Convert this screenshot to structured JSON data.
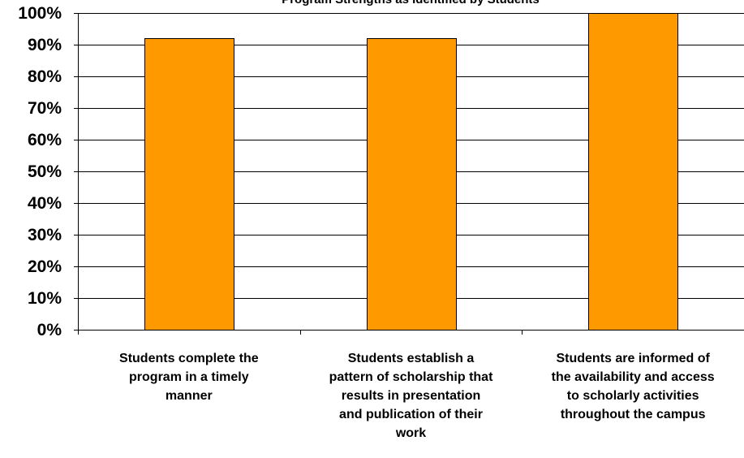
{
  "chart_data": {
    "type": "bar",
    "title": "Program Strengths as Identified by Students",
    "categories": [
      [
        "Students complete the",
        "program in a timely",
        "manner"
      ],
      [
        "Students establish a",
        "pattern of scholarship that",
        "results in presentation",
        "and publication of their",
        "work"
      ],
      [
        "Students are informed of",
        "the availability and access",
        "to scholarly activities",
        "throughout the campus"
      ]
    ],
    "values": [
      92,
      92,
      100
    ],
    "ylim": [
      0,
      100
    ],
    "ytick_step": 10,
    "ytick_labels": [
      "0%",
      "10%",
      "20%",
      "30%",
      "40%",
      "50%",
      "60%",
      "70%",
      "80%",
      "90%",
      "100%"
    ],
    "xlabel": "",
    "ylabel": "",
    "grid": true,
    "legend": false,
    "colors": {
      "bar_fill": "#FF9900",
      "bar_stroke": "#000000",
      "gridline": "#000000",
      "axis": "#000000",
      "text": "#000000"
    }
  }
}
